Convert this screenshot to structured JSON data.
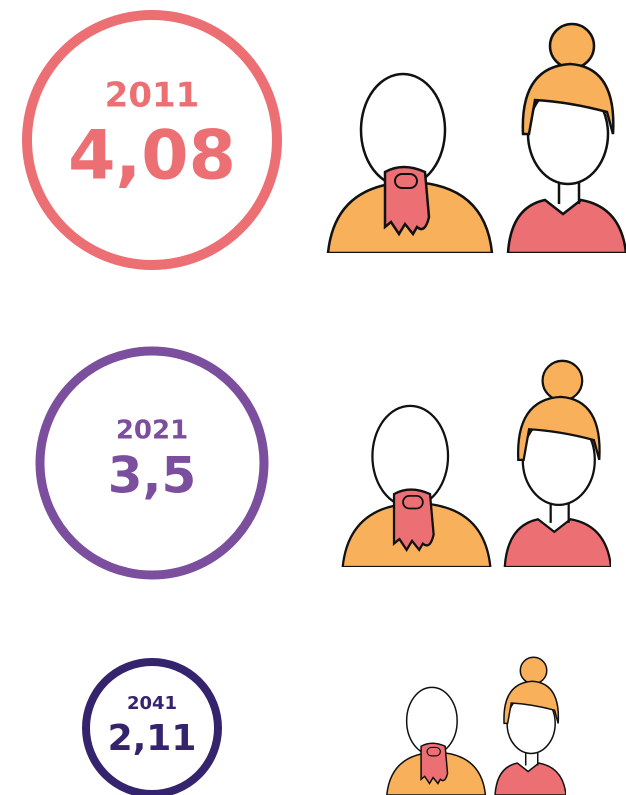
{
  "items": [
    {
      "year": "2011",
      "value": "4,08"
    },
    {
      "year": "2021",
      "value": "3,5"
    },
    {
      "year": "2041",
      "value": "2,11"
    }
  ]
}
